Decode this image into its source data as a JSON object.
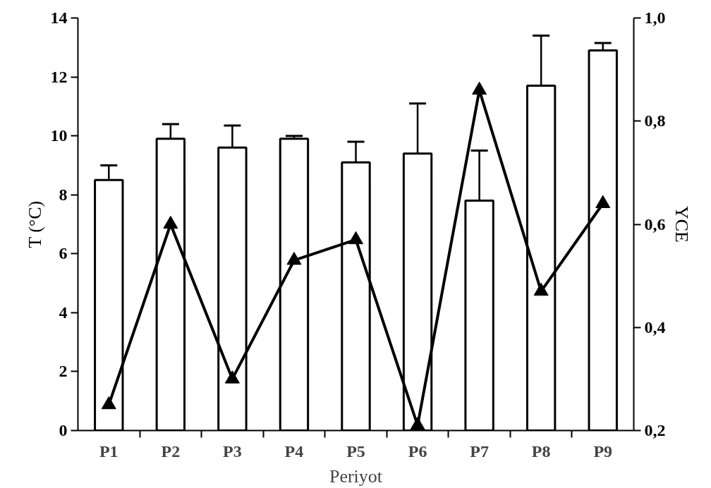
{
  "chart_data": {
    "type": "bar",
    "xlabel": "Periyot",
    "ylabel": "T (°C)",
    "y2label": "YCE",
    "categories": [
      "P1",
      "P2",
      "P3",
      "P4",
      "P5",
      "P6",
      "P7",
      "P8",
      "P9"
    ],
    "series": [
      {
        "color": "#ffffff",
        "values": [
          8.5,
          9.9,
          9.6,
          9.9,
          9.1,
          9.4,
          7.8,
          11.7,
          12.9
        ],
        "errors": [
          0.5,
          0.5,
          0.75,
          0.1,
          0.7,
          1.7,
          1.7,
          1.7,
          0.25
        ]
      },
      {
        "type": "line",
        "axis": "y2",
        "color": "#000000",
        "marker": "triangle",
        "line_style": "solid",
        "values": [
          0.25,
          0.6,
          0.3,
          0.53,
          0.57,
          0.21,
          0.86,
          0.47,
          0.64
        ]
      }
    ],
    "ylim": [
      0,
      14
    ],
    "yticks": [
      0,
      2,
      4,
      6,
      8,
      10,
      12,
      14
    ],
    "y2lim": [
      0.2,
      1.0
    ],
    "y2ticks": [
      {
        "value": 0.2,
        "label": "0,2"
      },
      {
        "value": 0.4,
        "label": "0,4"
      },
      {
        "value": 0.6,
        "label": "0,6"
      },
      {
        "value": 0.8,
        "label": "0,8"
      },
      {
        "value": 1.0,
        "label": "1,0"
      }
    ],
    "grid": false
  }
}
